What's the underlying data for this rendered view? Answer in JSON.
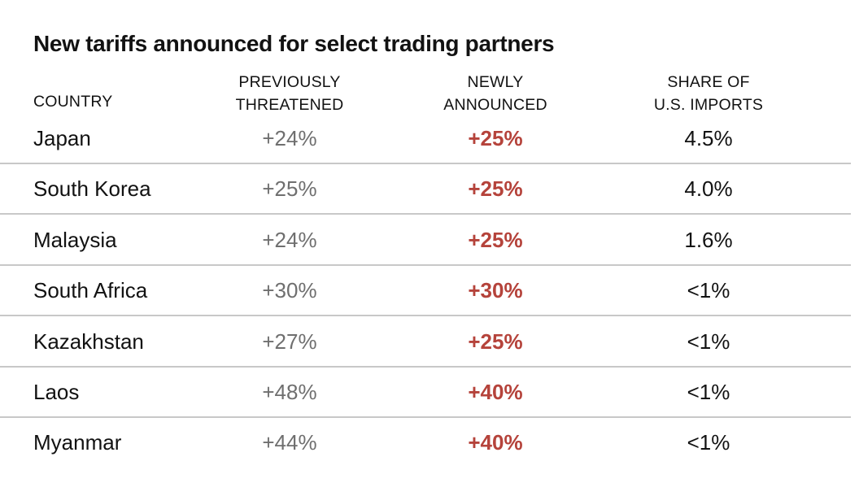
{
  "chart_data": {
    "type": "table",
    "title": "New tariffs announced for select trading partners",
    "columns": [
      {
        "lines": [
          "COUNTRY"
        ]
      },
      {
        "lines": [
          "PREVIOUSLY",
          "THREATENED"
        ]
      },
      {
        "lines": [
          "NEWLY",
          "ANNOUNCED"
        ]
      },
      {
        "lines": [
          "SHARE OF",
          "U.S. IMPORTS"
        ]
      }
    ],
    "rows": [
      {
        "country": "Japan",
        "previously_threatened": "+24%",
        "newly_announced": "+25%",
        "share_of_us_imports": "4.5%"
      },
      {
        "country": "South Korea",
        "previously_threatened": "+25%",
        "newly_announced": "+25%",
        "share_of_us_imports": "4.0%"
      },
      {
        "country": "Malaysia",
        "previously_threatened": "+24%",
        "newly_announced": "+25%",
        "share_of_us_imports": "1.6%"
      },
      {
        "country": "South Africa",
        "previously_threatened": "+30%",
        "newly_announced": "+30%",
        "share_of_us_imports": "<1%"
      },
      {
        "country": "Kazakhstan",
        "previously_threatened": "+27%",
        "newly_announced": "+25%",
        "share_of_us_imports": "<1%"
      },
      {
        "country": "Laos",
        "previously_threatened": "+48%",
        "newly_announced": "+40%",
        "share_of_us_imports": "<1%"
      },
      {
        "country": "Myanmar",
        "previously_threatened": "+44%",
        "newly_announced": "+40%",
        "share_of_us_imports": "<1%"
      }
    ],
    "colors": {
      "text": "#121212",
      "previously_threatened": "#6f6f6f",
      "newly_announced": "#b5433b",
      "divider": "#c8c8c8"
    }
  }
}
